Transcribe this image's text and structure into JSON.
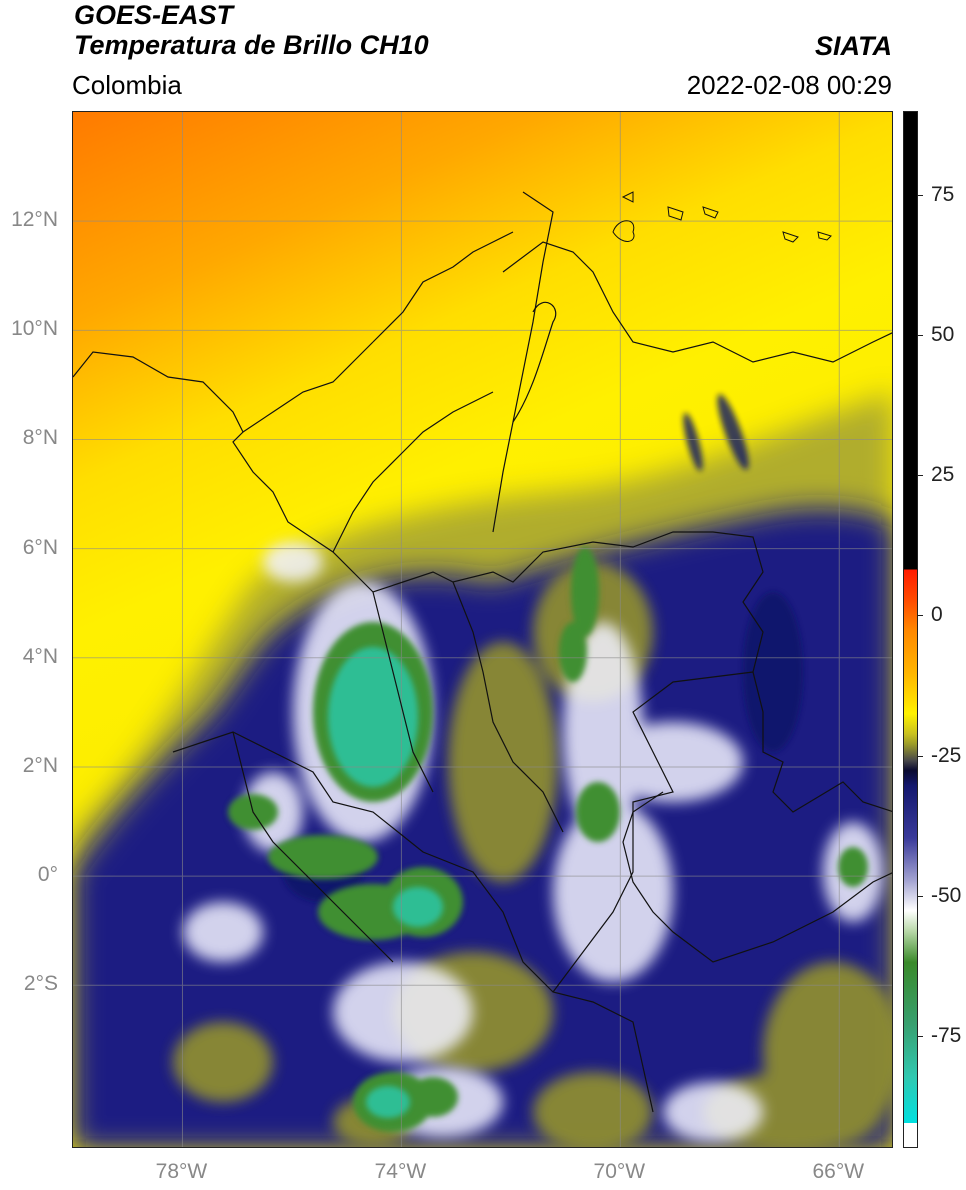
{
  "header": {
    "satellite": "GOES-EAST",
    "product": "Temperatura de Brillo CH10",
    "agency": "SIATA",
    "region": "Colombia",
    "datetime": "2022-02-08 00:29"
  },
  "map": {
    "lon_range": [
      -80,
      -65
    ],
    "lat_range": [
      -5,
      14
    ],
    "lat_ticks": [
      {
        "lat": 12,
        "label": "12°N"
      },
      {
        "lat": 10,
        "label": "10°N"
      },
      {
        "lat": 8,
        "label": "8°N"
      },
      {
        "lat": 6,
        "label": "6°N"
      },
      {
        "lat": 4,
        "label": "4°N"
      },
      {
        "lat": 2,
        "label": "2°N"
      },
      {
        "lat": 0,
        "label": "0°"
      },
      {
        "lat": -2,
        "label": "2°S"
      }
    ],
    "lon_ticks": [
      {
        "lon": -78,
        "label": "78°W"
      },
      {
        "lon": -74,
        "label": "74°W"
      },
      {
        "lon": -70,
        "label": "70°W"
      },
      {
        "lon": -66,
        "label": "66°W"
      }
    ],
    "gridlines": true
  },
  "colorbar": {
    "range": [
      -95,
      90
    ],
    "ticks": [
      {
        "value": 75,
        "label": "75"
      },
      {
        "value": 50,
        "label": "50"
      },
      {
        "value": 25,
        "label": "25"
      },
      {
        "value": 0,
        "label": "0"
      },
      {
        "value": -25,
        "label": "-25"
      },
      {
        "value": -50,
        "label": "-50"
      },
      {
        "value": -75,
        "label": "-75"
      }
    ],
    "colors": {
      "above_10": "#000000",
      "warm_red": "#ff2000",
      "orange": "#ff8800",
      "yellow": "#ffee00",
      "olive": "#9a9a2a",
      "navy": "#14186e",
      "white": "#ffffff",
      "green": "#3a8a2a",
      "teal": "#30c0a0",
      "cyan": "#00e0e0"
    }
  }
}
